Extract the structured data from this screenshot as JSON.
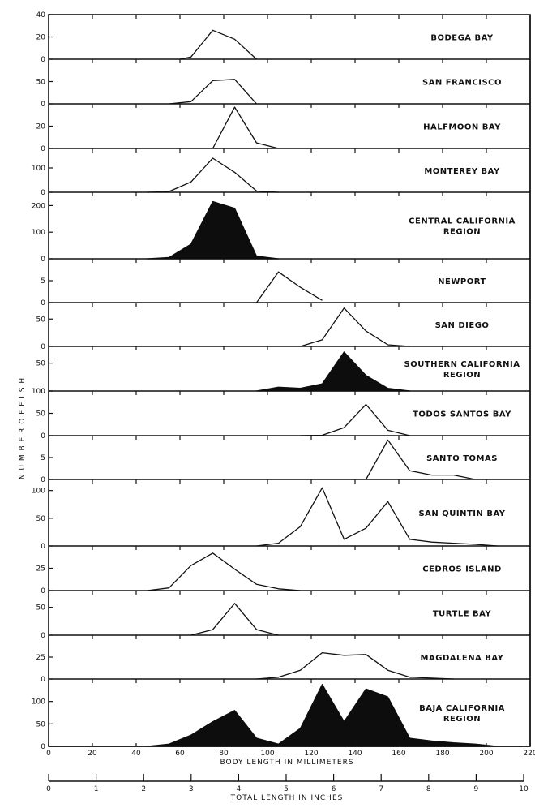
{
  "chart_data": {
    "type": "area",
    "ylabel": "NUMBER OF FISH",
    "xlabel": "BODY LENGTH IN MILLIMETERS",
    "xlabel2": "TOTAL LENGTH IN INCHES",
    "xlim": [
      0,
      220
    ],
    "x_ticks": [
      0,
      20,
      40,
      60,
      80,
      100,
      120,
      140,
      160,
      180,
      200,
      220
    ],
    "x2lim": [
      0,
      10
    ],
    "x2_ticks": [
      "0",
      "1",
      "2",
      "3",
      "4",
      "5",
      "6",
      "7",
      "8",
      "9",
      "10"
    ],
    "panels": [
      {
        "name": "BODEGA BAY",
        "filled": false,
        "ylim": [
          0,
          40
        ],
        "yticks": [
          "0",
          "20",
          "40"
        ],
        "points": [
          [
            60,
            0
          ],
          [
            65,
            2
          ],
          [
            75,
            26
          ],
          [
            85,
            18
          ],
          [
            95,
            0
          ]
        ]
      },
      {
        "name": "SAN FRANCISCO",
        "filled": false,
        "ylim": [
          0,
          100
        ],
        "yticks": [
          "0",
          "50"
        ],
        "points": [
          [
            55,
            0
          ],
          [
            65,
            5
          ],
          [
            75,
            52
          ],
          [
            85,
            55
          ],
          [
            95,
            0
          ]
        ]
      },
      {
        "name": "HALFMOON BAY",
        "filled": false,
        "ylim": [
          0,
          40
        ],
        "yticks": [
          "0",
          "20"
        ],
        "points": [
          [
            75,
            0
          ],
          [
            85,
            37
          ],
          [
            95,
            5
          ],
          [
            105,
            0
          ]
        ]
      },
      {
        "name": "MONTEREY BAY",
        "filled": false,
        "ylim": [
          0,
          180
        ],
        "yticks": [
          "0",
          "100"
        ],
        "points": [
          [
            45,
            0
          ],
          [
            55,
            3
          ],
          [
            65,
            42
          ],
          [
            75,
            140
          ],
          [
            85,
            82
          ],
          [
            95,
            5
          ],
          [
            105,
            0
          ]
        ]
      },
      {
        "name": "CENTRAL CALIFORNIA\nREGION",
        "filled": true,
        "ylim": [
          0,
          250
        ],
        "yticks": [
          "0",
          "100",
          "200"
        ],
        "points": [
          [
            45,
            0
          ],
          [
            55,
            5
          ],
          [
            65,
            55
          ],
          [
            75,
            215
          ],
          [
            85,
            190
          ],
          [
            95,
            10
          ],
          [
            105,
            0
          ]
        ]
      },
      {
        "name": "NEWPORT",
        "filled": false,
        "ylim": [
          0,
          10
        ],
        "yticks": [
          "0",
          "5"
        ],
        "points": [
          [
            95,
            0
          ],
          [
            105,
            7
          ],
          [
            115,
            3.5
          ],
          [
            125,
            0.5
          ]
        ]
      },
      {
        "name": "SAN DIEGO",
        "filled": false,
        "ylim": [
          0,
          80
        ],
        "yticks": [
          "0",
          "50"
        ],
        "points": [
          [
            115,
            0
          ],
          [
            125,
            12
          ],
          [
            135,
            70
          ],
          [
            145,
            28
          ],
          [
            155,
            3
          ],
          [
            165,
            0
          ]
        ]
      },
      {
        "name": "SOUTHERN CALIFORNIA\nREGION",
        "filled": true,
        "ylim": [
          0,
          80
        ],
        "yticks": [
          "0",
          "50"
        ],
        "points": [
          [
            95,
            0
          ],
          [
            105,
            7
          ],
          [
            115,
            5
          ],
          [
            125,
            13
          ],
          [
            135,
            70
          ],
          [
            145,
            28
          ],
          [
            155,
            5
          ],
          [
            165,
            0
          ]
        ]
      },
      {
        "name": "TODOS SANTOS BAY",
        "filled": false,
        "ylim": [
          0,
          100
        ],
        "yticks": [
          "0",
          "50",
          "100"
        ],
        "points": [
          [
            115,
            0
          ],
          [
            125,
            1
          ],
          [
            135,
            18
          ],
          [
            145,
            70
          ],
          [
            155,
            12
          ],
          [
            165,
            0
          ]
        ]
      },
      {
        "name": "SANTO TOMAS",
        "filled": false,
        "ylim": [
          0,
          10
        ],
        "yticks": [
          "0",
          "5"
        ],
        "points": [
          [
            145,
            0
          ],
          [
            155,
            9
          ],
          [
            165,
            2
          ],
          [
            175,
            1
          ],
          [
            185,
            1
          ],
          [
            195,
            0
          ]
        ]
      },
      {
        "name": "SAN QUINTIN BAY",
        "filled": false,
        "ylim": [
          0,
          120
        ],
        "yticks": [
          "0",
          "50",
          "100"
        ],
        "points": [
          [
            95,
            0
          ],
          [
            105,
            5
          ],
          [
            115,
            35
          ],
          [
            125,
            105
          ],
          [
            135,
            12
          ],
          [
            145,
            32
          ],
          [
            155,
            80
          ],
          [
            165,
            12
          ],
          [
            175,
            7
          ],
          [
            185,
            5
          ],
          [
            195,
            3
          ],
          [
            205,
            0
          ]
        ]
      },
      {
        "name": "CEDROS ISLAND",
        "filled": false,
        "ylim": [
          0,
          50
        ],
        "yticks": [
          "0",
          "25"
        ],
        "points": [
          [
            45,
            0
          ],
          [
            55,
            3
          ],
          [
            65,
            28
          ],
          [
            75,
            42
          ],
          [
            85,
            24
          ],
          [
            95,
            7
          ],
          [
            105,
            2
          ],
          [
            115,
            0
          ]
        ]
      },
      {
        "name": "TURTLE BAY",
        "filled": false,
        "ylim": [
          0,
          80
        ],
        "yticks": [
          "0",
          "50"
        ],
        "points": [
          [
            65,
            0
          ],
          [
            75,
            10
          ],
          [
            85,
            57
          ],
          [
            95,
            10
          ],
          [
            105,
            0
          ]
        ]
      },
      {
        "name": "MAGDALENA BAY",
        "filled": false,
        "ylim": [
          0,
          50
        ],
        "yticks": [
          "0",
          "25"
        ],
        "points": [
          [
            95,
            0
          ],
          [
            105,
            2
          ],
          [
            115,
            10
          ],
          [
            125,
            30
          ],
          [
            135,
            27
          ],
          [
            145,
            28
          ],
          [
            155,
            10
          ],
          [
            165,
            2
          ],
          [
            175,
            1
          ],
          [
            185,
            0
          ]
        ]
      },
      {
        "name": "BAJA CALIFORNIA\nREGION",
        "filled": true,
        "ylim": [
          0,
          150
        ],
        "yticks": [
          "0",
          "50",
          "100"
        ],
        "points": [
          [
            45,
            0
          ],
          [
            55,
            5
          ],
          [
            65,
            25
          ],
          [
            75,
            55
          ],
          [
            85,
            80
          ],
          [
            95,
            18
          ],
          [
            105,
            5
          ],
          [
            115,
            40
          ],
          [
            125,
            138
          ],
          [
            135,
            55
          ],
          [
            145,
            128
          ],
          [
            155,
            110
          ],
          [
            165,
            18
          ],
          [
            175,
            12
          ],
          [
            185,
            8
          ],
          [
            195,
            5
          ],
          [
            205,
            0
          ]
        ]
      }
    ]
  }
}
